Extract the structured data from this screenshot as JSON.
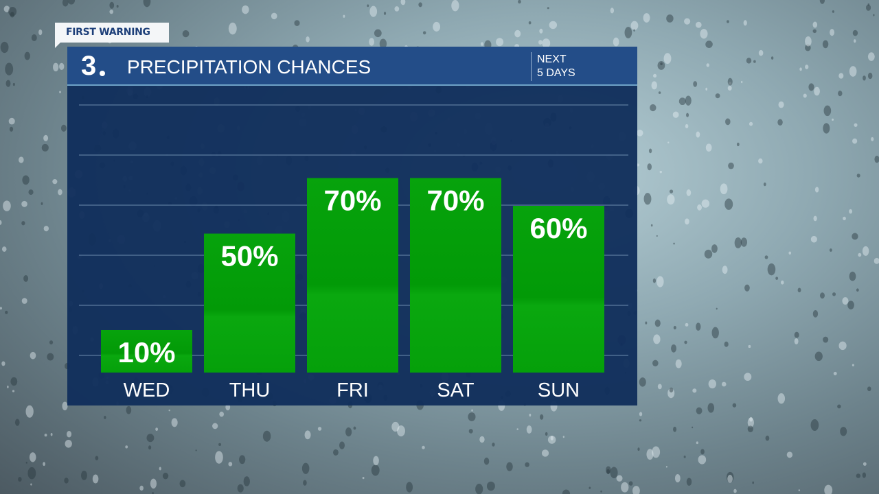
{
  "tag": "FIRST WARNING",
  "header": {
    "logo": "3",
    "title": "PRECIPITATION CHANCES",
    "subtitle_line1": "NEXT",
    "subtitle_line2": "5 DAYS"
  },
  "chart_data": {
    "type": "bar",
    "categories": [
      "WED",
      "THU",
      "FRI",
      "SAT",
      "SUN"
    ],
    "values": [
      10,
      50,
      70,
      70,
      60
    ],
    "data_labels": [
      "10%",
      "50%",
      "70%",
      "70%",
      "60%"
    ],
    "title": "PRECIPITATION CHANCES",
    "ylim": [
      0,
      100
    ],
    "grid": true,
    "bar_color": "#05a00a"
  },
  "colors": {
    "header": "#234d88",
    "panel": "#112f5c",
    "bar": "#05a00a"
  }
}
